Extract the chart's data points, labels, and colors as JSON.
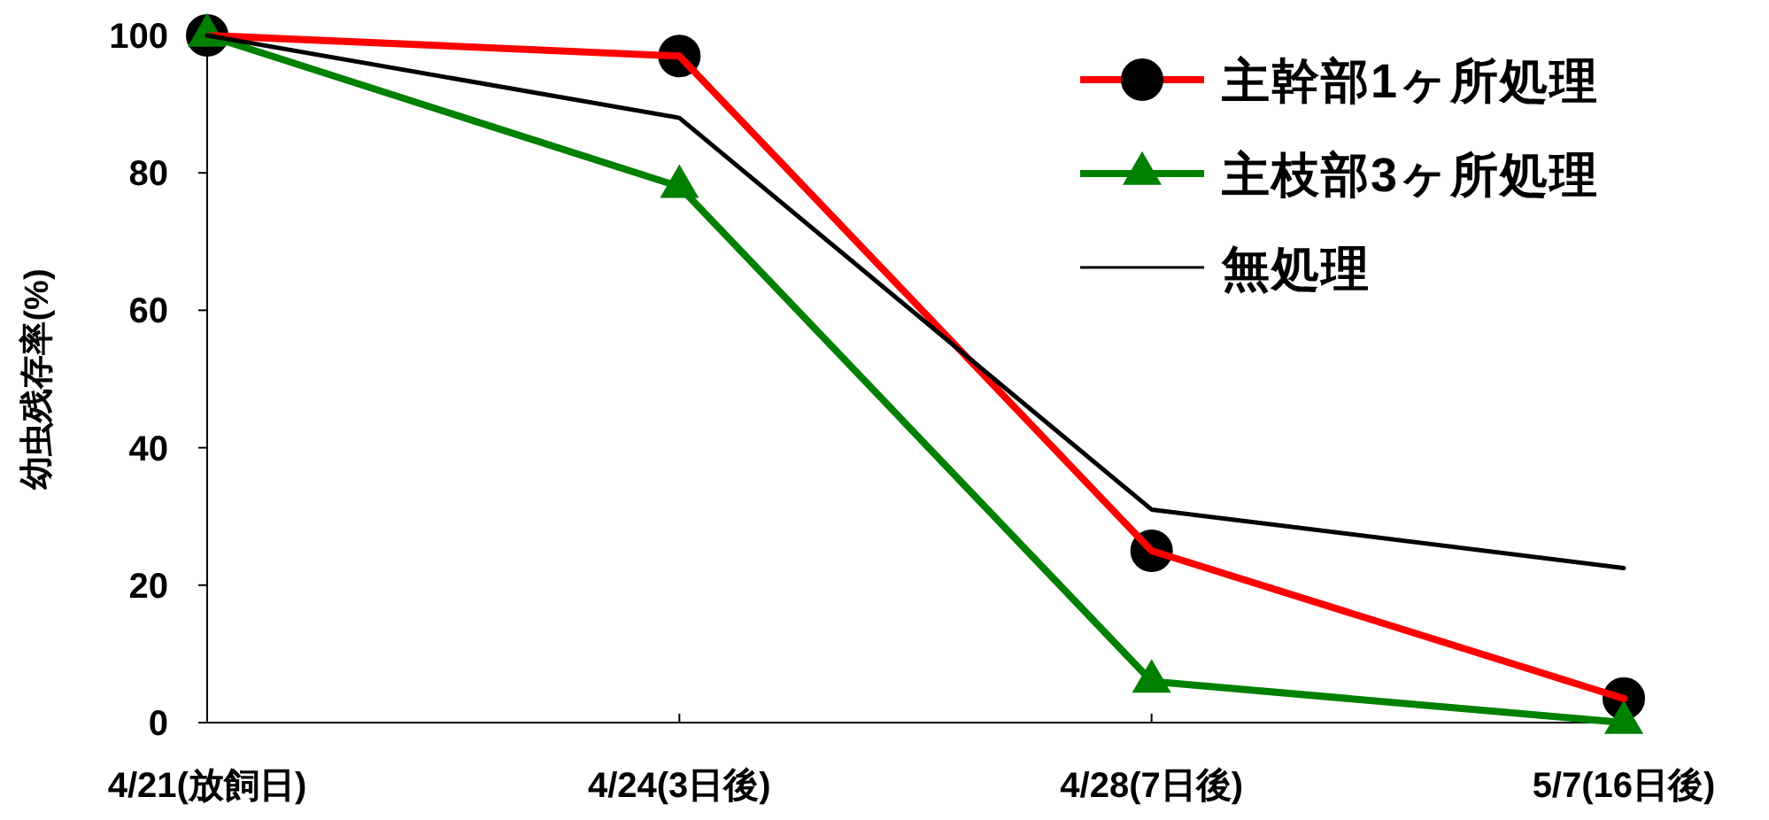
{
  "chart_data": {
    "type": "line",
    "ylabel": "幼虫残存率(%)",
    "categories": [
      "4/21(放飼日)",
      "4/24(3日後)",
      "4/28(7日後)",
      "5/7(16日後)"
    ],
    "ylim": [
      0,
      100
    ],
    "yticks": [
      0,
      20,
      40,
      60,
      80,
      100
    ],
    "grid": false,
    "legend": "top right",
    "line_style": "solid",
    "series": [
      {
        "name": "主幹部1ヶ所処理",
        "color": "#ff0000",
        "marker": "circle",
        "values": [
          100,
          97,
          25,
          3.5
        ]
      },
      {
        "name": "主枝部3ヶ所処理",
        "color": "#008000",
        "marker": "triangle",
        "values": [
          100,
          78,
          6,
          0
        ]
      },
      {
        "name": "無処理",
        "color": "#000000",
        "marker": "none",
        "values": [
          100,
          88,
          31,
          22.5
        ]
      }
    ]
  }
}
